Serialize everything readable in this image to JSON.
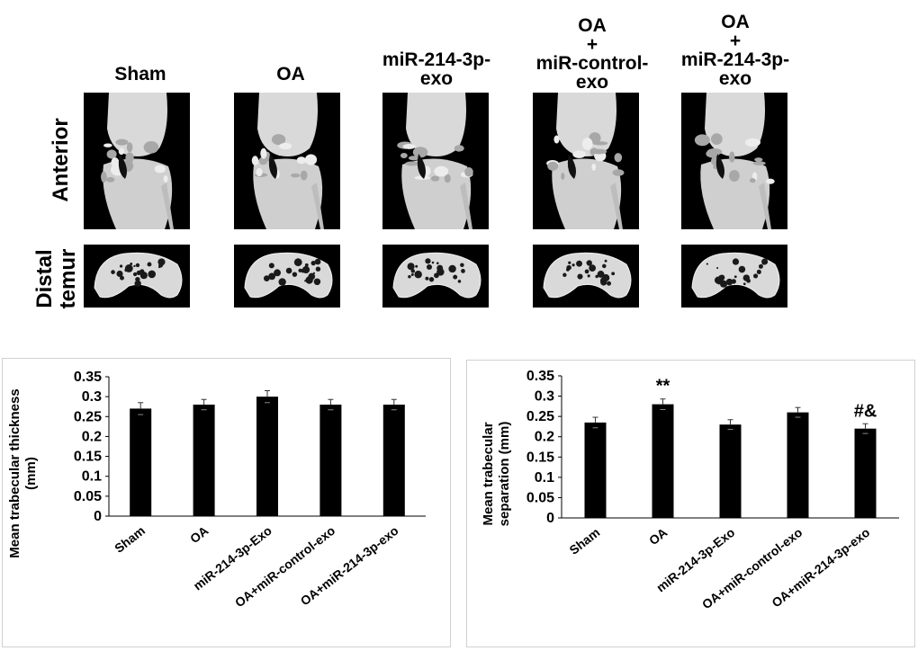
{
  "figure": {
    "column_headers": [
      "Sham",
      "OA",
      "miR-214-3p-\nexo",
      "OA\n+\nmiR-control-\nexo",
      "OA\n+\nmiR-214-3p-\nexo"
    ],
    "row_labels": [
      "Anterior",
      "Distal\ntemur"
    ],
    "colors": {
      "bar": "#000000",
      "panel_bg": "#000000",
      "bone": "#d9d9d9"
    }
  },
  "chart_data": [
    {
      "type": "bar",
      "title": "",
      "xlabel": "",
      "ylabel": "Mean trabecular thickness\n(mm)",
      "categories": [
        "Sham",
        "OA",
        "miR-214-3p-Exo",
        "OA+miR-control-exo",
        "OA+miR-214-3p-exo"
      ],
      "values": [
        0.27,
        0.28,
        0.3,
        0.28,
        0.28
      ],
      "errors": [
        0.015,
        0.013,
        0.015,
        0.013,
        0.013
      ],
      "annotations": [
        "",
        "",
        "",
        "",
        ""
      ],
      "ylim": [
        0,
        0.35
      ],
      "yticks": [
        "0",
        "0.05",
        "0.1",
        "0.15",
        "0.2",
        "0.25",
        "0.3",
        "0.35"
      ],
      "grid": false
    },
    {
      "type": "bar",
      "title": "",
      "xlabel": "",
      "ylabel": "Mean trabecular\nseparation (mm)",
      "categories": [
        "Sham",
        "OA",
        "miR-214-3p-Exo",
        "OA+miR-control-exo",
        "OA+miR-214-3p-exo"
      ],
      "values": [
        0.235,
        0.28,
        0.23,
        0.26,
        0.22
      ],
      "errors": [
        0.013,
        0.013,
        0.012,
        0.012,
        0.012
      ],
      "annotations": [
        "",
        "**",
        "",
        "",
        "#&"
      ],
      "ylim": [
        0,
        0.35
      ],
      "yticks": [
        "0",
        "0.05",
        "0.1",
        "0.15",
        "0.2",
        "0.25",
        "0.3",
        "0.35"
      ],
      "grid": false
    }
  ]
}
